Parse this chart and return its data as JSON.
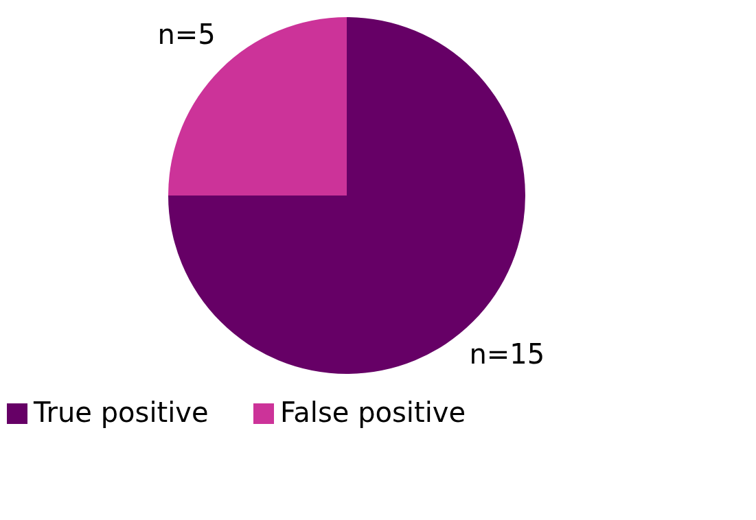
{
  "chart_data": {
    "type": "pie",
    "categories": [
      "True positive",
      "False positive"
    ],
    "values": [
      15,
      5
    ],
    "colors": [
      "#660066",
      "#cc3399"
    ],
    "value_labels": [
      "n=15",
      "n=5"
    ],
    "legend": "bottom"
  }
}
